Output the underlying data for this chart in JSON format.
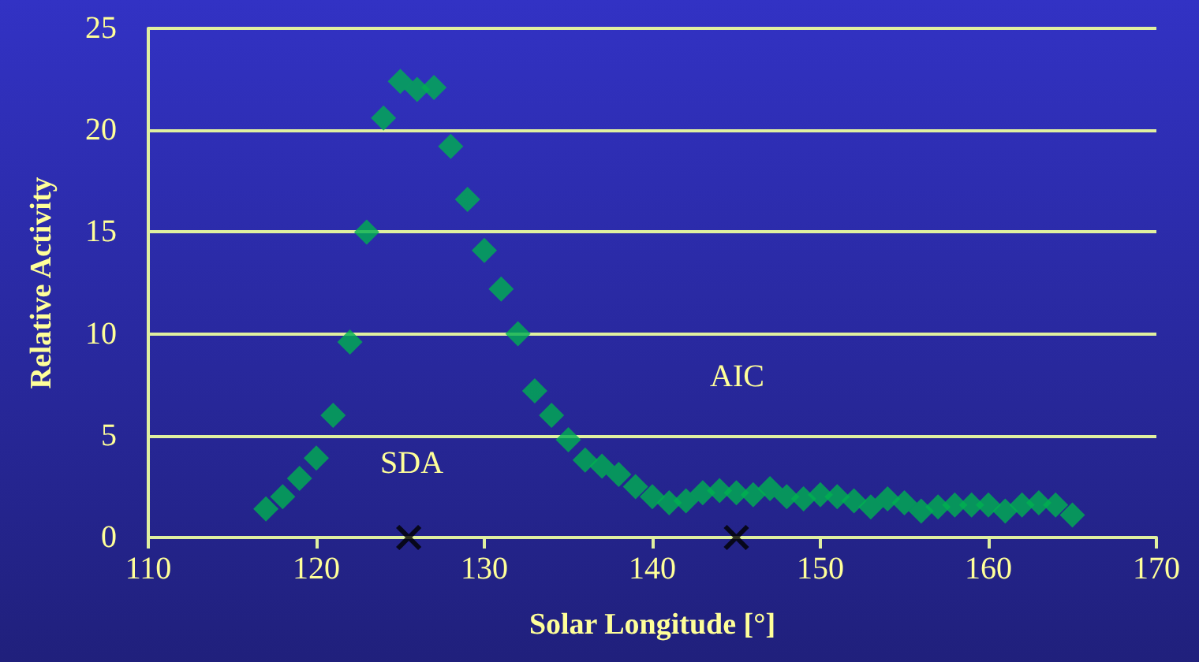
{
  "chart_data": {
    "type": "scatter",
    "xlabel": "Solar Longitude [°]",
    "ylabel": "Relative Activity",
    "xlim": [
      110,
      170
    ],
    "xticks": [
      110,
      120,
      130,
      140,
      150,
      160,
      170
    ],
    "ylim": [
      0,
      25
    ],
    "yticks": [
      0,
      5,
      10,
      15,
      20,
      25
    ],
    "grid": "y",
    "series": [
      {
        "color": "#00b050",
        "marker": "diamond",
        "x": [
          117,
          118,
          119,
          120,
          121,
          122,
          123,
          124,
          125,
          126,
          127,
          128,
          129,
          130,
          131,
          132,
          133,
          134,
          135,
          136,
          137,
          138,
          139,
          140,
          141,
          142,
          143,
          144,
          145,
          146,
          147,
          148,
          149,
          150,
          151,
          152,
          153,
          154,
          155,
          156,
          157,
          158,
          159,
          160,
          161,
          162,
          163,
          164,
          165
        ],
        "values": [
          1.4,
          2.0,
          2.9,
          3.9,
          6.0,
          9.6,
          15.0,
          20.6,
          22.4,
          22.0,
          22.1,
          19.2,
          16.6,
          14.1,
          12.2,
          10.0,
          7.2,
          6.0,
          4.8,
          3.8,
          3.5,
          3.1,
          2.5,
          2.0,
          1.7,
          1.8,
          2.2,
          2.3,
          2.2,
          2.1,
          2.4,
          2.0,
          1.9,
          2.1,
          2.0,
          1.8,
          1.5,
          1.9,
          1.7,
          1.3,
          1.5,
          1.6,
          1.6,
          1.6,
          1.3,
          1.6,
          1.7,
          1.6,
          1.1
        ]
      },
      {
        "color": "#000000",
        "marker": "cross",
        "x": [
          125.5,
          145
        ],
        "values": [
          0,
          0
        ]
      }
    ],
    "annotations": [
      "SDA",
      "AIC"
    ]
  }
}
